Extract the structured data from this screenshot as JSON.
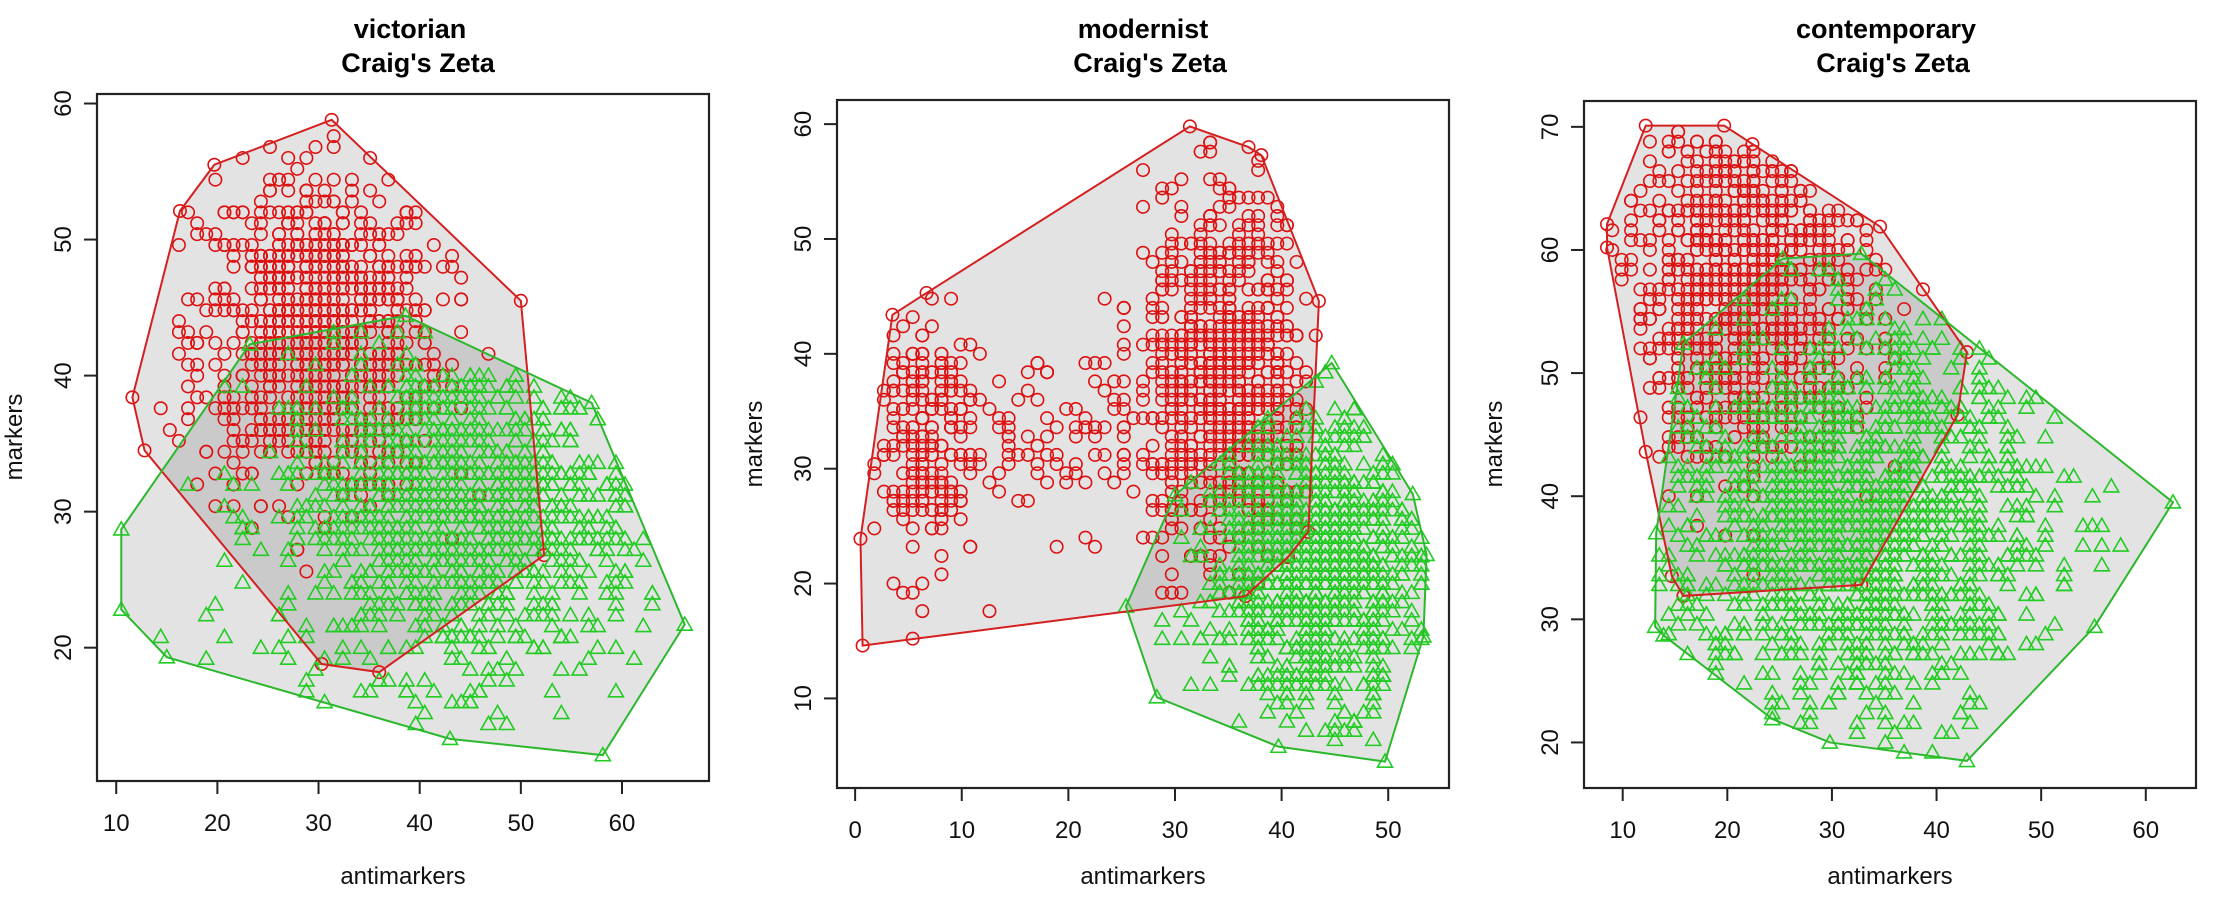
{
  "chart_data": [
    {
      "type": "scatter",
      "title": "victorian",
      "subtitle": "Craig's Zeta",
      "xlabel": "antimarkers",
      "ylabel": "markers",
      "xlim": [
        8.1,
        68.6
      ],
      "ylim": [
        10.2,
        60.7
      ],
      "xticks": [
        10,
        20,
        30,
        40,
        50,
        60
      ],
      "yticks": [
        20,
        30,
        40,
        50,
        60
      ],
      "grid": false,
      "series": [
        {
          "name": "markers",
          "marker": "circle",
          "color": "#dd1111",
          "hull": [
            [
              31.3,
              58.8
            ],
            [
              19.7,
              55.5
            ],
            [
              16.3,
              52.1
            ],
            [
              11.6,
              38.4
            ],
            [
              12.8,
              34.5
            ],
            [
              30.3,
              18.8
            ],
            [
              36.0,
              18.2
            ],
            [
              52.3,
              26.8
            ],
            [
              50.0,
              45.5
            ]
          ],
          "clusters": [
            {
              "center": [
                30,
                43
              ],
              "sd": [
                6,
                6
              ],
              "n": 900
            }
          ]
        },
        {
          "name": "antimarkers",
          "marker": "triangle",
          "color": "#22cc22",
          "hull": [
            [
              38.6,
              44.4
            ],
            [
              57.0,
              38.0
            ],
            [
              66.2,
              21.7
            ],
            [
              58.1,
              12.1
            ],
            [
              43.0,
              13.3
            ],
            [
              15.0,
              19.3
            ],
            [
              10.5,
              22.8
            ],
            [
              10.5,
              28.7
            ],
            [
              23.2,
              42.3
            ]
          ],
          "clusters": [
            {
              "center": [
                44,
                30
              ],
              "sd": [
                9,
                6
              ],
              "n": 1100
            }
          ]
        }
      ]
    },
    {
      "type": "scatter",
      "title": "modernist",
      "subtitle": "Craig's Zeta",
      "xlabel": "antimarkers",
      "ylabel": "markers",
      "xlim": [
        -1.7,
        55.7
      ],
      "ylim": [
        2.2,
        62.1
      ],
      "xticks": [
        0,
        10,
        20,
        30,
        40,
        50
      ],
      "yticks": [
        10,
        20,
        30,
        40,
        50,
        60
      ],
      "grid": false,
      "series": [
        {
          "name": "markers",
          "marker": "circle",
          "color": "#dd1111",
          "hull": [
            [
              31.4,
              59.8
            ],
            [
              36.9,
              58.0
            ],
            [
              38.1,
              57.3
            ],
            [
              43.5,
              44.6
            ],
            [
              42.5,
              24.5
            ],
            [
              40.6,
              22.3
            ],
            [
              36.6,
              18.9
            ],
            [
              0.7,
              14.6
            ],
            [
              0.5,
              23.9
            ],
            [
              3.5,
              43.4
            ],
            [
              6.7,
              45.3
            ]
          ],
          "clusters": [
            {
              "center": [
                6,
                33
              ],
              "sd": [
                3,
                6
              ],
              "n": 220
            },
            {
              "center": [
                35,
                38
              ],
              "sd": [
                4,
                8
              ],
              "n": 750
            },
            {
              "center": [
                20,
                33
              ],
              "sd": [
                6,
                4
              ],
              "n": 90
            }
          ]
        },
        {
          "name": "antimarkers",
          "marker": "triangle",
          "color": "#22cc22",
          "hull": [
            [
              44.7,
              39.2
            ],
            [
              52.3,
              27.8
            ],
            [
              53.6,
              22.5
            ],
            [
              53.3,
              15.4
            ],
            [
              49.7,
              4.5
            ],
            [
              39.7,
              5.8
            ],
            [
              28.3,
              10.1
            ],
            [
              25.4,
              18.0
            ],
            [
              30.0,
              27.7
            ]
          ],
          "clusters": [
            {
              "center": [
                43,
                22
              ],
              "sd": [
                5,
                6
              ],
              "n": 1100
            }
          ]
        }
      ]
    },
    {
      "type": "scatter",
      "title": "contemporary",
      "subtitle": "Craig's Zeta",
      "xlabel": "antimarkers",
      "ylabel": "markers",
      "xlim": [
        6.3,
        64.8
      ],
      "ylim": [
        16.3,
        72.1
      ],
      "xticks": [
        10,
        20,
        30,
        40,
        50,
        60
      ],
      "yticks": [
        20,
        30,
        40,
        50,
        60,
        70
      ],
      "grid": false,
      "series": [
        {
          "name": "markers",
          "marker": "circle",
          "color": "#dd1111",
          "hull": [
            [
              12.2,
              70.1
            ],
            [
              19.7,
              70.1
            ],
            [
              22.4,
              68.6
            ],
            [
              34.6,
              61.9
            ],
            [
              42.9,
              51.7
            ],
            [
              42.0,
              46.6
            ],
            [
              32.8,
              32.8
            ],
            [
              15.8,
              31.9
            ],
            [
              14.7,
              33.5
            ],
            [
              12.2,
              43.6
            ],
            [
              8.5,
              60.2
            ],
            [
              8.5,
              62.1
            ]
          ],
          "clusters": [
            {
              "center": [
                22,
                57
              ],
              "sd": [
                6,
                7
              ],
              "n": 900
            }
          ]
        },
        {
          "name": "antimarkers",
          "marker": "triangle",
          "color": "#22cc22",
          "hull": [
            [
              32.8,
              59.7
            ],
            [
              62.6,
              39.5
            ],
            [
              55.1,
              29.4
            ],
            [
              42.9,
              18.5
            ],
            [
              29.8,
              20.0
            ],
            [
              24.3,
              21.9
            ],
            [
              13.9,
              28.7
            ],
            [
              13.1,
              29.4
            ],
            [
              13.2,
              37.0
            ],
            [
              15.8,
              52.4
            ],
            [
              25.3,
              59.3
            ]
          ],
          "clusters": [
            {
              "center": [
                32,
                38
              ],
              "sd": [
                9,
                8
              ],
              "n": 1400
            }
          ]
        }
      ]
    }
  ]
}
